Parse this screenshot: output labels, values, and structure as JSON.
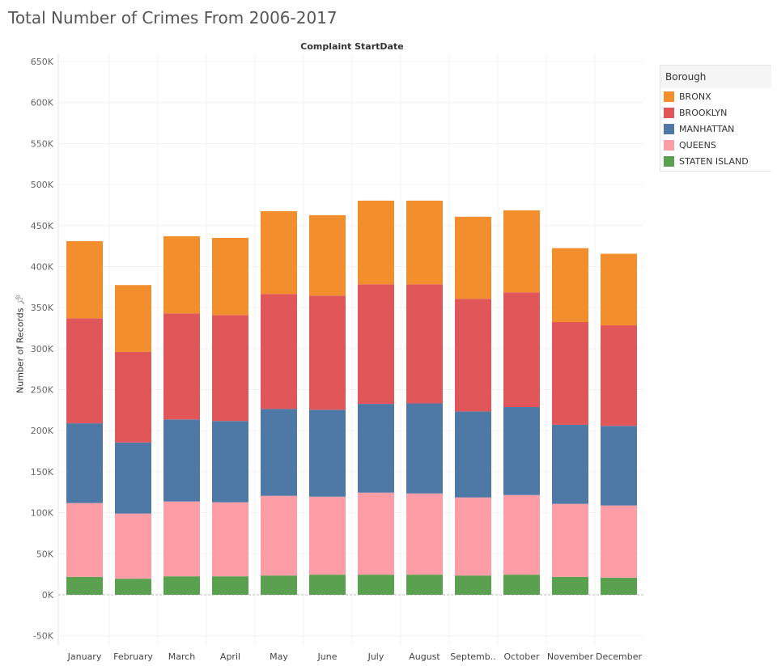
{
  "title": "Total Number of Crimes From 2006-2017",
  "chart_data": {
    "type": "bar",
    "stacked": true,
    "title": "Total Number of Crimes From 2006-2017",
    "column_header": "Complaint StartDate",
    "xlabel": "",
    "ylabel": "Number of Records",
    "ylim": [
      -50000,
      650000
    ],
    "yticks": [
      "-50K",
      "0K",
      "50K",
      "100K",
      "150K",
      "200K",
      "250K",
      "300K",
      "350K",
      "400K",
      "450K",
      "500K",
      "550K",
      "600K",
      "650K"
    ],
    "ytick_values": [
      -50000,
      0,
      50000,
      100000,
      150000,
      200000,
      250000,
      300000,
      350000,
      400000,
      450000,
      500000,
      550000,
      600000,
      650000
    ],
    "grid": true,
    "legend_position": "right",
    "legend_title": "Borough",
    "categories": [
      "January",
      "February",
      "March",
      "April",
      "May",
      "June",
      "July",
      "August",
      "Septemb..",
      "October",
      "November",
      "December"
    ],
    "series": [
      {
        "name": "STATEN ISLAND",
        "color": "#59a14f",
        "values": [
          21900,
          19600,
          22500,
          22500,
          23500,
          24500,
          24500,
          24500,
          23500,
          24500,
          21900,
          20900
        ]
      },
      {
        "name": "QUEENS",
        "color": "#ff9da7",
        "values": [
          89900,
          79400,
          91200,
          90200,
          97100,
          95100,
          100000,
          99000,
          95100,
          97100,
          88900,
          87900
        ]
      },
      {
        "name": "MANHATTAN",
        "color": "#4e79a7",
        "values": [
          97200,
          86600,
          100000,
          99100,
          105900,
          105900,
          108200,
          109800,
          104900,
          107200,
          96400,
          97100
        ]
      },
      {
        "name": "BROOKLYN",
        "color": "#e15759",
        "values": [
          128000,
          110400,
          129300,
          129200,
          140200,
          139200,
          145700,
          145100,
          137300,
          139800,
          125200,
          122500
        ]
      },
      {
        "name": "BRONX",
        "color": "#f28e2b",
        "values": [
          94000,
          81500,
          94000,
          94000,
          100900,
          98000,
          102000,
          102000,
          100000,
          100000,
          90100,
          87300
        ]
      }
    ],
    "legend_order": [
      "BRONX",
      "BROOKLYN",
      "MANHATTAN",
      "QUEENS",
      "STATEN ISLAND"
    ]
  }
}
